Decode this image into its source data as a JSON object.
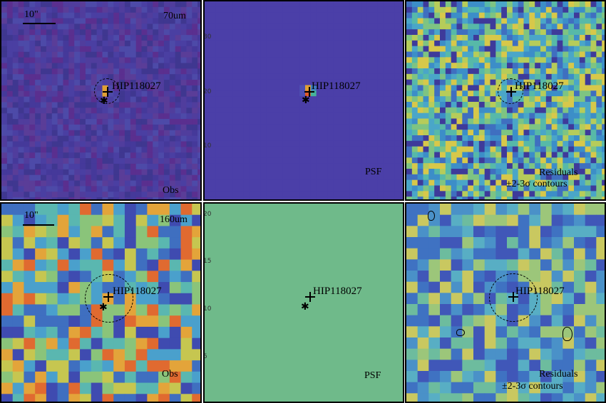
{
  "panels": {
    "top_obs": {
      "band": "70um",
      "scale": "10\"",
      "label": "Obs",
      "source": "HIP118027"
    },
    "top_psf": {
      "label": "PSF",
      "source": "HIP118027",
      "ticks": [
        "30",
        "20",
        "10"
      ]
    },
    "top_res": {
      "label_line1": "Residuals",
      "label_line2": "±2-3σ contours",
      "source": "HIP118027"
    },
    "bot_obs": {
      "band": "160um",
      "scale": "10\"",
      "label": "Obs",
      "source": "HIP118027"
    },
    "bot_psf": {
      "label": "PSF",
      "source": "HIP118027",
      "ticks": [
        "20",
        "15",
        "10",
        "5"
      ]
    },
    "bot_res": {
      "label_line1": "Residuals",
      "label_line2": "±2-3σ contours",
      "source": "HIP118027"
    }
  },
  "colors": {
    "obs70_bg": "#4a3f9c",
    "psf70_bg": "#4b3fa8",
    "res_bg": "#4fa3c8",
    "obs160_bg": "#5fb5b8",
    "psf160_bg": "#6fba8a"
  }
}
